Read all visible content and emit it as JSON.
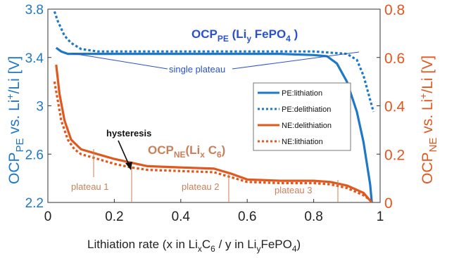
{
  "chart_data": {
    "type": "line",
    "title": "",
    "xlabel": {
      "prefix": "Lithiation rate (x in Li",
      "sub1": "x",
      "mid1": "C",
      "sub2": "6",
      "mid2": "  / y in  Li",
      "sub3": "y",
      "suffix": "FePO",
      "sub4": "4",
      "close": ")"
    },
    "ylabel_left": {
      "main": "OCP",
      "sub": "PE",
      "rest": " vs. Li",
      "sup": "+",
      "tail": "/Li [V]"
    },
    "ylabel_right": {
      "main": "OCP",
      "sub": "NE",
      "rest": " vs. Li",
      "sup": "+",
      "tail": "/Li [V]"
    },
    "xlim": [
      0,
      1
    ],
    "ylim_left": [
      2.2,
      3.8
    ],
    "ylim_right": [
      0,
      0.8
    ],
    "xticks": [
      "0",
      "0.2",
      "0.4",
      "0.6",
      "0.8",
      "1"
    ],
    "yticks_left": [
      "2.2",
      "2.6",
      "3",
      "3.4",
      "3.8"
    ],
    "yticks_right": [
      "0",
      "0.2",
      "0.4",
      "0.6",
      "0.8"
    ],
    "grid": false,
    "legend_position": "right",
    "colors": {
      "pe": "#1f77c8",
      "ne": "#e0581e",
      "plateau": "#c8805a",
      "pe_annotation": "#2a52c8"
    },
    "series": [
      {
        "name": "PE:lithiation",
        "axis": "left",
        "style": "solid",
        "x": [
          0.025,
          0.04,
          0.06,
          0.1,
          0.2,
          0.4,
          0.6,
          0.7,
          0.8,
          0.84,
          0.87,
          0.9,
          0.93,
          0.95,
          0.97,
          0.975
        ],
        "y": [
          3.48,
          3.45,
          3.43,
          3.43,
          3.43,
          3.43,
          3.43,
          3.43,
          3.42,
          3.41,
          3.35,
          3.2,
          2.95,
          2.7,
          2.35,
          2.2
        ]
      },
      {
        "name": "PE:delithiation",
        "axis": "left",
        "style": "dotted",
        "x": [
          0.02,
          0.03,
          0.05,
          0.07,
          0.1,
          0.15,
          0.2,
          0.4,
          0.6,
          0.8,
          0.9,
          0.93,
          0.95,
          0.96,
          0.97,
          0.98
        ],
        "y": [
          3.78,
          3.7,
          3.58,
          3.52,
          3.47,
          3.45,
          3.45,
          3.45,
          3.45,
          3.45,
          3.43,
          3.38,
          3.25,
          3.15,
          3.05,
          2.95
        ]
      },
      {
        "name": "NE:delithiation",
        "axis": "right",
        "style": "solid",
        "x": [
          0.025,
          0.035,
          0.05,
          0.07,
          0.1,
          0.15,
          0.2,
          0.25,
          0.3,
          0.4,
          0.5,
          0.55,
          0.6,
          0.7,
          0.8,
          0.85,
          0.9,
          0.95,
          0.975
        ],
        "y": [
          0.57,
          0.45,
          0.34,
          0.26,
          0.22,
          0.2,
          0.18,
          0.165,
          0.15,
          0.145,
          0.14,
          0.12,
          0.095,
          0.09,
          0.09,
          0.085,
          0.07,
          0.04,
          0.0
        ]
      },
      {
        "name": "NE:lithiation",
        "axis": "right",
        "style": "dotted",
        "x": [
          0.02,
          0.03,
          0.04,
          0.06,
          0.08,
          0.1,
          0.15,
          0.2,
          0.25,
          0.3,
          0.4,
          0.5,
          0.55,
          0.6,
          0.7,
          0.8,
          0.85,
          0.9,
          0.95,
          0.97
        ],
        "y": [
          0.5,
          0.42,
          0.34,
          0.26,
          0.22,
          0.2,
          0.18,
          0.16,
          0.145,
          0.135,
          0.13,
          0.125,
          0.105,
          0.085,
          0.08,
          0.08,
          0.075,
          0.06,
          0.03,
          0.01
        ]
      }
    ],
    "legend": [
      "PE:lithiation",
      "PE:delithiation",
      "NE:delithiation",
      "NE:lithiation"
    ],
    "annotations": {
      "pe_label": {
        "main": "OCP",
        "sub": "PE",
        "mid": " (Li",
        "sub2": "y",
        "tail": " FePO",
        "sub3": "4",
        "close": " )"
      },
      "ne_label": {
        "main": "OCP",
        "sub": "NE",
        "mid": "(Li",
        "sub2": "x",
        "tail": " C",
        "sub3": "6",
        "close": ")"
      },
      "single_plateau": "single plateau",
      "hysteresis": "hysteresis",
      "plateau1": "plateau 1",
      "plateau2": "plateau 2",
      "plateau3": "plateau 3"
    }
  }
}
